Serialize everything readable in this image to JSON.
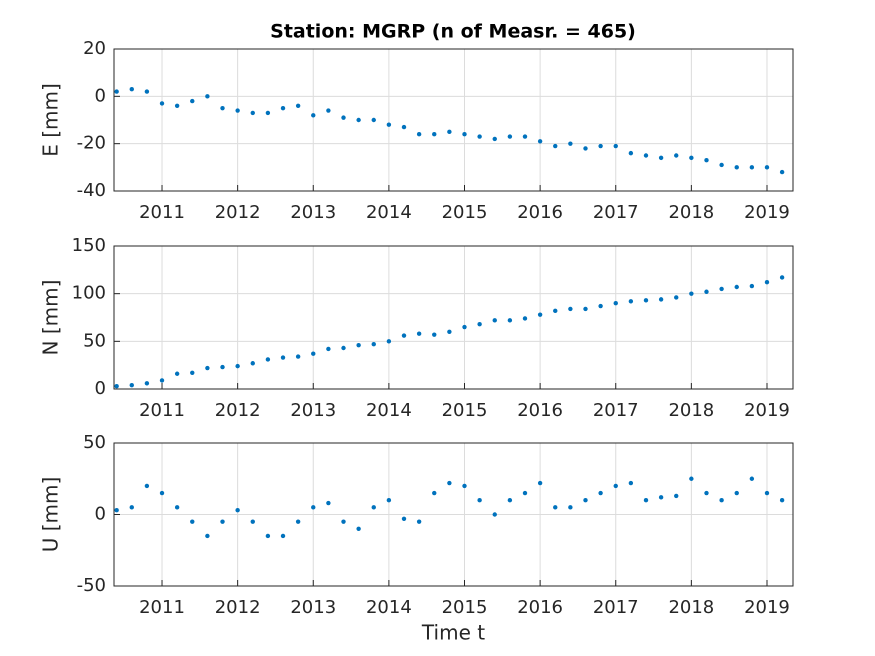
{
  "chart_data": [
    {
      "type": "scatter",
      "title": "Station: MGRP (n of Measr. = 465)",
      "y_label": "E [mm]",
      "color": "#0072BD",
      "grid": true,
      "x": [
        2010.4,
        2010.6,
        2010.8,
        2011.0,
        2011.2,
        2011.4,
        2011.6,
        2011.8,
        2012.0,
        2012.2,
        2012.4,
        2012.6,
        2012.8,
        2013.0,
        2013.2,
        2013.4,
        2013.6,
        2013.8,
        2014.0,
        2014.2,
        2014.4,
        2014.6,
        2014.8,
        2015.0,
        2015.2,
        2015.4,
        2015.6,
        2015.8,
        2016.0,
        2016.2,
        2016.4,
        2016.6,
        2016.8,
        2017.0,
        2017.2,
        2017.4,
        2017.6,
        2017.8,
        2018.0,
        2018.2,
        2018.4,
        2018.6,
        2018.8,
        2019.0,
        2019.2
      ],
      "values": [
        2,
        3,
        2,
        -3,
        -4,
        -2,
        0,
        -5,
        -6,
        -7,
        -7,
        -5,
        -4,
        -8,
        -6,
        -9,
        -10,
        -10,
        -12,
        -13,
        -16,
        -16,
        -15,
        -16,
        -17,
        -18,
        -17,
        -17,
        -19,
        -21,
        -20,
        -22,
        -21,
        -21,
        -24,
        -25,
        -26,
        -25,
        -26,
        -27,
        -29,
        -30,
        -30,
        -30,
        -32
      ],
      "xlim": [
        2010.365,
        2019.344
      ],
      "xticks": [
        2011,
        2012,
        2013,
        2014,
        2015,
        2016,
        2017,
        2018,
        2019
      ],
      "ylim": [
        -40,
        20
      ],
      "yticks": [
        -40,
        -20,
        0,
        20
      ]
    },
    {
      "type": "scatter",
      "y_label": "N [mm]",
      "color": "#0072BD",
      "grid": true,
      "x": [
        2010.4,
        2010.6,
        2010.8,
        2011.0,
        2011.2,
        2011.4,
        2011.6,
        2011.8,
        2012.0,
        2012.2,
        2012.4,
        2012.6,
        2012.8,
        2013.0,
        2013.2,
        2013.4,
        2013.6,
        2013.8,
        2014.0,
        2014.2,
        2014.4,
        2014.6,
        2014.8,
        2015.0,
        2015.2,
        2015.4,
        2015.6,
        2015.8,
        2016.0,
        2016.2,
        2016.4,
        2016.6,
        2016.8,
        2017.0,
        2017.2,
        2017.4,
        2017.6,
        2017.8,
        2018.0,
        2018.2,
        2018.4,
        2018.6,
        2018.8,
        2019.0,
        2019.2
      ],
      "values": [
        3,
        4,
        6,
        9,
        16,
        17,
        22,
        23,
        24,
        27,
        31,
        33,
        34,
        37,
        42,
        43,
        46,
        47,
        50,
        56,
        58,
        57,
        60,
        65,
        68,
        72,
        72,
        74,
        78,
        82,
        84,
        84,
        87,
        90,
        92,
        93,
        94,
        96,
        100,
        102,
        105,
        107,
        108,
        112,
        117
      ],
      "xlim": [
        2010.365,
        2019.344
      ],
      "xticks": [
        2011,
        2012,
        2013,
        2014,
        2015,
        2016,
        2017,
        2018,
        2019
      ],
      "ylim": [
        0,
        150
      ],
      "yticks": [
        0,
        50,
        100,
        150
      ]
    },
    {
      "type": "scatter",
      "y_label": "U [mm]",
      "x_label": "Time t",
      "color": "#0072BD",
      "grid": true,
      "x": [
        2010.4,
        2010.6,
        2010.8,
        2011.0,
        2011.2,
        2011.4,
        2011.6,
        2011.8,
        2012.0,
        2012.2,
        2012.4,
        2012.6,
        2012.8,
        2013.0,
        2013.2,
        2013.4,
        2013.6,
        2013.8,
        2014.0,
        2014.2,
        2014.4,
        2014.6,
        2014.8,
        2015.0,
        2015.2,
        2015.4,
        2015.6,
        2015.8,
        2016.0,
        2016.2,
        2016.4,
        2016.6,
        2016.8,
        2017.0,
        2017.2,
        2017.4,
        2017.6,
        2017.8,
        2018.0,
        2018.2,
        2018.4,
        2018.6,
        2018.8,
        2019.0,
        2019.2
      ],
      "values": [
        3,
        5,
        20,
        15,
        5,
        -5,
        -15,
        -5,
        3,
        -5,
        -15,
        -15,
        -5,
        5,
        8,
        -5,
        -10,
        5,
        10,
        -3,
        -5,
        15,
        22,
        20,
        10,
        0,
        10,
        15,
        22,
        5,
        5,
        10,
        15,
        20,
        22,
        10,
        12,
        13,
        25,
        15,
        10,
        15,
        25,
        15,
        10
      ],
      "xlim": [
        2010.365,
        2019.344
      ],
      "xticks": [
        2011,
        2012,
        2013,
        2014,
        2015,
        2016,
        2017,
        2018,
        2019
      ],
      "ylim": [
        -50,
        50
      ],
      "yticks": [
        -50,
        0,
        50
      ]
    }
  ]
}
